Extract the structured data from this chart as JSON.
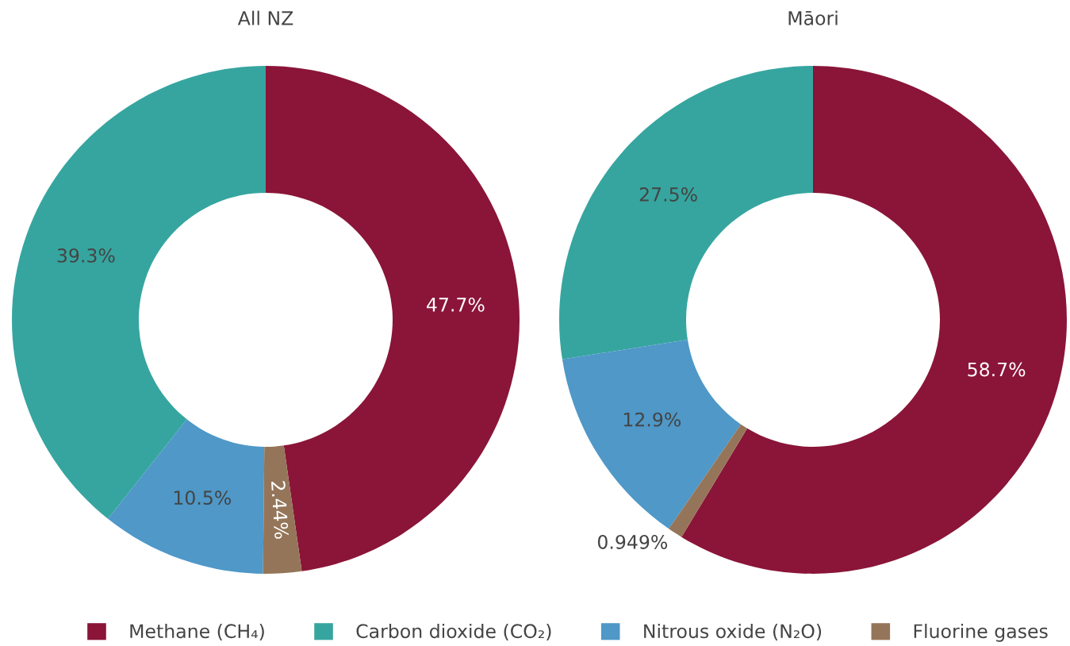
{
  "chart_data": [
    {
      "type": "donut",
      "title": "All NZ",
      "categories": [
        "Methane (CH₄)",
        "Carbon dioxide (CO₂)",
        "Nitrous oxide (N₂O)",
        "Fluorine gases"
      ],
      "values": [
        47.7,
        39.3,
        10.5,
        2.44
      ],
      "colors": [
        "#8a1538",
        "#36a59f",
        "#4f98c8",
        "#957559"
      ],
      "value_labels": [
        "47.7%",
        "39.3%",
        "10.5%",
        "2.44%"
      ],
      "legend": "bottom"
    },
    {
      "type": "donut",
      "title": "Māori",
      "categories": [
        null,
        null,
        null,
        null
      ],
      "values": [
        58.7,
        27.5,
        12.9,
        0.949
      ],
      "colors": [
        "#8a1538",
        "#36a59f",
        "#4f98c8",
        "#957559"
      ],
      "value_labels": [
        "58.7%",
        "27.5%",
        "12.9%",
        "0.949%"
      ]
    }
  ]
}
